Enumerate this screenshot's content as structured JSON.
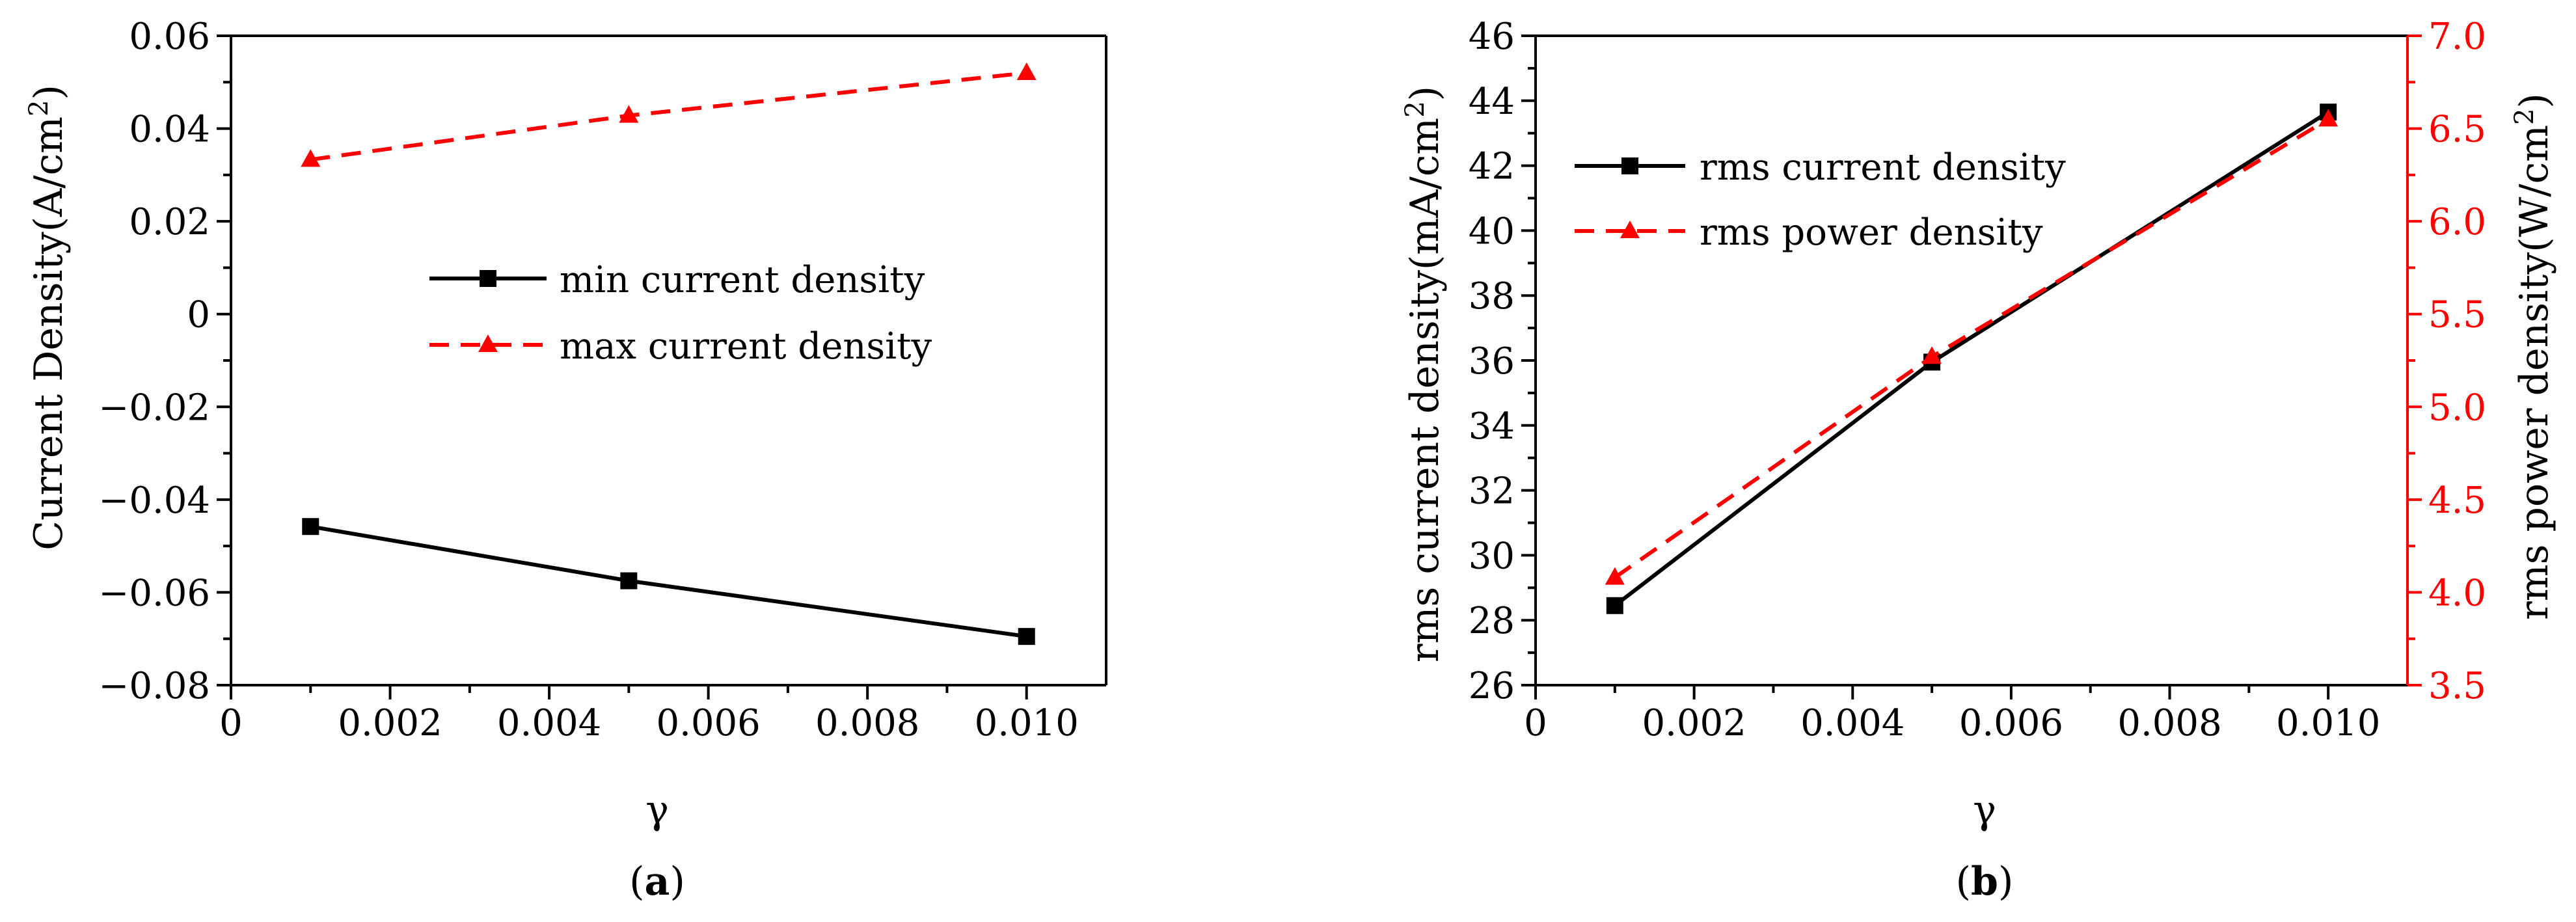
{
  "panels": {
    "a_label": "a",
    "b_label": "b"
  },
  "chart_data": [
    {
      "type": "line",
      "panel": "a",
      "xlabel": "γ",
      "ylabel": "Current Density(A/cm",
      "ylabel_sup": "2",
      "ylabel_end": ")",
      "xlim": [
        0,
        0.011
      ],
      "ylim": [
        -0.08,
        0.06
      ],
      "xticks": [
        0,
        0.002,
        0.004,
        0.006,
        0.008,
        0.01
      ],
      "xtick_labels": [
        "0",
        "0.002",
        "0.004",
        "0.006",
        "0.008",
        "0.010"
      ],
      "yticks": [
        -0.08,
        -0.06,
        -0.04,
        -0.02,
        0,
        0.02,
        0.04,
        0.06
      ],
      "ytick_labels": [
        "−0.08",
        "−0.06",
        "−0.04",
        "−0.02",
        "0",
        "0.02",
        "0.04",
        "0.06"
      ],
      "x": [
        0.001,
        0.005,
        0.01
      ],
      "series": [
        {
          "name": "min current density",
          "values": [
            -0.0458,
            -0.0575,
            -0.0695
          ],
          "color": "#000000",
          "dash": "solid",
          "marker": "square"
        },
        {
          "name": "max current density",
          "values": [
            0.0333,
            0.0428,
            0.052
          ],
          "color": "#ff0000",
          "dash": "dashed",
          "marker": "triangle"
        }
      ],
      "legend_position": "center"
    },
    {
      "type": "line",
      "panel": "b",
      "xlabel": "γ",
      "ylabel_left": "rms current density(mA/cm",
      "ylabel_left_sup": "2",
      "ylabel_left_end": ")",
      "ylabel_right": "rms power density(W/cm",
      "ylabel_right_sup": "2",
      "ylabel_right_end": ")",
      "xlim": [
        0,
        0.011
      ],
      "ylim_left": [
        26,
        46
      ],
      "ylim_right": [
        3.5,
        7.0
      ],
      "xticks": [
        0,
        0.002,
        0.004,
        0.006,
        0.008,
        0.01
      ],
      "xtick_labels": [
        "0",
        "0.002",
        "0.004",
        "0.006",
        "0.008",
        "0.010"
      ],
      "yticks_left": [
        26,
        28,
        30,
        32,
        34,
        36,
        38,
        40,
        42,
        44,
        46
      ],
      "ytick_labels_left": [
        "26",
        "28",
        "30",
        "32",
        "34",
        "36",
        "38",
        "40",
        "42",
        "44",
        "46"
      ],
      "yticks_right": [
        3.5,
        4.0,
        4.5,
        5.0,
        5.5,
        6.0,
        6.5,
        7.0
      ],
      "ytick_labels_right": [
        "3.5",
        "4.0",
        "4.5",
        "5.0",
        "5.5",
        "6.0",
        "6.5",
        "7.0"
      ],
      "x": [
        0.001,
        0.005,
        0.01
      ],
      "series": [
        {
          "name": "rms current density",
          "axis": "left",
          "values": [
            28.45,
            35.95,
            43.65
          ],
          "color": "#000000",
          "dash": "solid",
          "marker": "square"
        },
        {
          "name": "rms power density",
          "axis": "right",
          "values": [
            4.08,
            5.27,
            6.55
          ],
          "color": "#ff0000",
          "dash": "dashed",
          "marker": "triangle"
        }
      ],
      "legend_position": "top-left"
    }
  ]
}
